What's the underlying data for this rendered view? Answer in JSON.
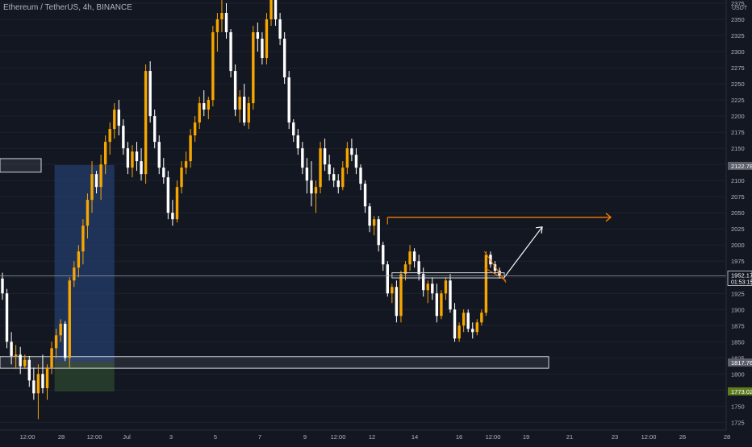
{
  "header": {
    "title": "Ethereum / TetherUS, 4h, BINANCE"
  },
  "chart_data": {
    "type": "candlestick",
    "currency_label": "USDT",
    "y_ticks": [
      1725,
      1750,
      1775,
      1800,
      1825,
      1850,
      1875,
      1900,
      1925,
      1950,
      1975,
      2000,
      2025,
      2050,
      2075,
      2100,
      2125,
      2150,
      2175,
      2200,
      2225,
      2250,
      2275,
      2300,
      2325,
      2350,
      2375
    ],
    "y_range": [
      1713,
      2380
    ],
    "x_ticks": [
      "12:00",
      "28",
      "12:00",
      "Jul",
      "3",
      "5",
      "7",
      "9",
      "12:00",
      "12",
      "14",
      "16",
      "12:00",
      "19",
      "21",
      "23",
      "12:00",
      "26",
      "28"
    ],
    "price_labels": {
      "current_price": "1952.17",
      "countdown": "01:53:15",
      "zone_price": "2122.78",
      "support_price": "1817.76",
      "target_low_price": "1773.02"
    },
    "levels": {
      "current": 1952.17,
      "zone": 2122.78,
      "support": 1817.76,
      "target_low": 1773.02,
      "resistance": 2043
    },
    "colors": {
      "up": "#f7a600",
      "down": "#ffffff",
      "background": "#131722",
      "resistance": "#f57c00",
      "long_zone": "#2a4a86",
      "stop_zone": "#2d4a2d",
      "grid": "#1e222d"
    },
    "candles": [
      [
        1948,
        1957,
        1915,
        1925
      ],
      [
        1925,
        1932,
        1840,
        1850
      ],
      [
        1850,
        1865,
        1815,
        1828
      ],
      [
        1828,
        1845,
        1808,
        1830
      ],
      [
        1830,
        1842,
        1800,
        1812
      ],
      [
        1812,
        1830,
        1808,
        1822
      ],
      [
        1822,
        1828,
        1780,
        1790
      ],
      [
        1790,
        1810,
        1760,
        1770
      ],
      [
        1770,
        1815,
        1730,
        1800
      ],
      [
        1800,
        1830,
        1770,
        1778
      ],
      [
        1778,
        1815,
        1760,
        1810
      ],
      [
        1810,
        1850,
        1800,
        1840
      ],
      [
        1840,
        1870,
        1825,
        1860
      ],
      [
        1860,
        1885,
        1850,
        1878
      ],
      [
        1878,
        1882,
        1820,
        1825
      ],
      [
        1825,
        1950,
        1810,
        1945
      ],
      [
        1945,
        1975,
        1935,
        1965
      ],
      [
        1965,
        2000,
        1950,
        1990
      ],
      [
        1990,
        2040,
        1970,
        2030
      ],
      [
        2030,
        2080,
        2010,
        2070
      ],
      [
        2070,
        2130,
        2050,
        2110
      ],
      [
        2110,
        2115,
        2080,
        2090
      ],
      [
        2090,
        2140,
        2070,
        2125
      ],
      [
        2125,
        2170,
        2110,
        2160
      ],
      [
        2160,
        2190,
        2140,
        2180
      ],
      [
        2180,
        2220,
        2165,
        2210
      ],
      [
        2210,
        2225,
        2170,
        2185
      ],
      [
        2185,
        2195,
        2140,
        2150
      ],
      [
        2150,
        2160,
        2110,
        2120
      ],
      [
        2120,
        2155,
        2105,
        2145
      ],
      [
        2145,
        2160,
        2115,
        2130
      ],
      [
        2130,
        2150,
        2100,
        2110
      ],
      [
        2110,
        2280,
        2095,
        2270
      ],
      [
        2270,
        2285,
        2190,
        2200
      ],
      [
        2200,
        2210,
        2150,
        2160
      ],
      [
        2160,
        2170,
        2110,
        2120
      ],
      [
        2120,
        2135,
        2095,
        2105
      ],
      [
        2105,
        2115,
        2040,
        2050
      ],
      [
        2050,
        2070,
        2030,
        2040
      ],
      [
        2040,
        2100,
        2035,
        2090
      ],
      [
        2090,
        2130,
        2080,
        2120
      ],
      [
        2120,
        2145,
        2110,
        2130
      ],
      [
        2130,
        2180,
        2120,
        2170
      ],
      [
        2170,
        2200,
        2160,
        2190
      ],
      [
        2190,
        2230,
        2180,
        2220
      ],
      [
        2220,
        2240,
        2200,
        2210
      ],
      [
        2210,
        2230,
        2195,
        2225
      ],
      [
        2225,
        2340,
        2215,
        2330
      ],
      [
        2330,
        2360,
        2300,
        2350
      ],
      [
        2350,
        2390,
        2330,
        2360
      ],
      [
        2360,
        2375,
        2320,
        2330
      ],
      [
        2330,
        2335,
        2260,
        2270
      ],
      [
        2270,
        2280,
        2200,
        2210
      ],
      [
        2210,
        2240,
        2190,
        2230
      ],
      [
        2230,
        2250,
        2185,
        2190
      ],
      [
        2190,
        2230,
        2180,
        2220
      ],
      [
        2220,
        2340,
        2210,
        2330
      ],
      [
        2330,
        2345,
        2300,
        2320
      ],
      [
        2320,
        2330,
        2280,
        2290
      ],
      [
        2290,
        2360,
        2280,
        2350
      ],
      [
        2350,
        2405,
        2340,
        2395
      ],
      [
        2395,
        2400,
        2340,
        2350
      ],
      [
        2350,
        2360,
        2310,
        2320
      ],
      [
        2320,
        2330,
        2250,
        2260
      ],
      [
        2260,
        2270,
        2180,
        2190
      ],
      [
        2190,
        2195,
        2160,
        2170
      ],
      [
        2170,
        2180,
        2140,
        2150
      ],
      [
        2150,
        2160,
        2110,
        2120
      ],
      [
        2120,
        2135,
        2080,
        2100
      ],
      [
        2100,
        2130,
        2060,
        2080
      ],
      [
        2080,
        2100,
        2050,
        2090
      ],
      [
        2090,
        2160,
        2080,
        2150
      ],
      [
        2150,
        2165,
        2115,
        2125
      ],
      [
        2125,
        2140,
        2100,
        2110
      ],
      [
        2110,
        2120,
        2090,
        2100
      ],
      [
        2100,
        2110,
        2080,
        2090
      ],
      [
        2090,
        2130,
        2085,
        2120
      ],
      [
        2120,
        2160,
        2110,
        2150
      ],
      [
        2150,
        2165,
        2130,
        2140
      ],
      [
        2140,
        2150,
        2110,
        2120
      ],
      [
        2120,
        2125,
        2085,
        2095
      ],
      [
        2095,
        2100,
        2050,
        2060
      ],
      [
        2060,
        2065,
        2020,
        2030
      ],
      [
        2030,
        2045,
        2015,
        2040
      ],
      [
        2040,
        2045,
        1990,
        2000
      ],
      [
        2000,
        2005,
        1960,
        1970
      ],
      [
        1970,
        1975,
        1920,
        1925
      ],
      [
        1925,
        1940,
        1910,
        1935
      ],
      [
        1935,
        1945,
        1880,
        1890
      ],
      [
        1890,
        1960,
        1880,
        1955
      ],
      [
        1955,
        1975,
        1945,
        1970
      ],
      [
        1970,
        2000,
        1960,
        1990
      ],
      [
        1990,
        1995,
        1965,
        1975
      ],
      [
        1975,
        1985,
        1945,
        1955
      ],
      [
        1955,
        1965,
        1920,
        1930
      ],
      [
        1930,
        1945,
        1910,
        1940
      ],
      [
        1940,
        1950,
        1915,
        1925
      ],
      [
        1925,
        1940,
        1880,
        1890
      ],
      [
        1890,
        1930,
        1885,
        1925
      ],
      [
        1925,
        1950,
        1915,
        1945
      ],
      [
        1945,
        1955,
        1895,
        1900
      ],
      [
        1900,
        1910,
        1850,
        1855
      ],
      [
        1855,
        1880,
        1850,
        1875
      ],
      [
        1875,
        1900,
        1865,
        1895
      ],
      [
        1895,
        1900,
        1865,
        1870
      ],
      [
        1870,
        1880,
        1855,
        1865
      ],
      [
        1865,
        1885,
        1860,
        1880
      ],
      [
        1880,
        1900,
        1875,
        1895
      ],
      [
        1895,
        1990,
        1890,
        1985
      ],
      [
        1985,
        1990,
        1965,
        1970
      ],
      [
        1970,
        1975,
        1955,
        1960
      ],
      [
        1960,
        1965,
        1948,
        1952.17
      ]
    ]
  }
}
